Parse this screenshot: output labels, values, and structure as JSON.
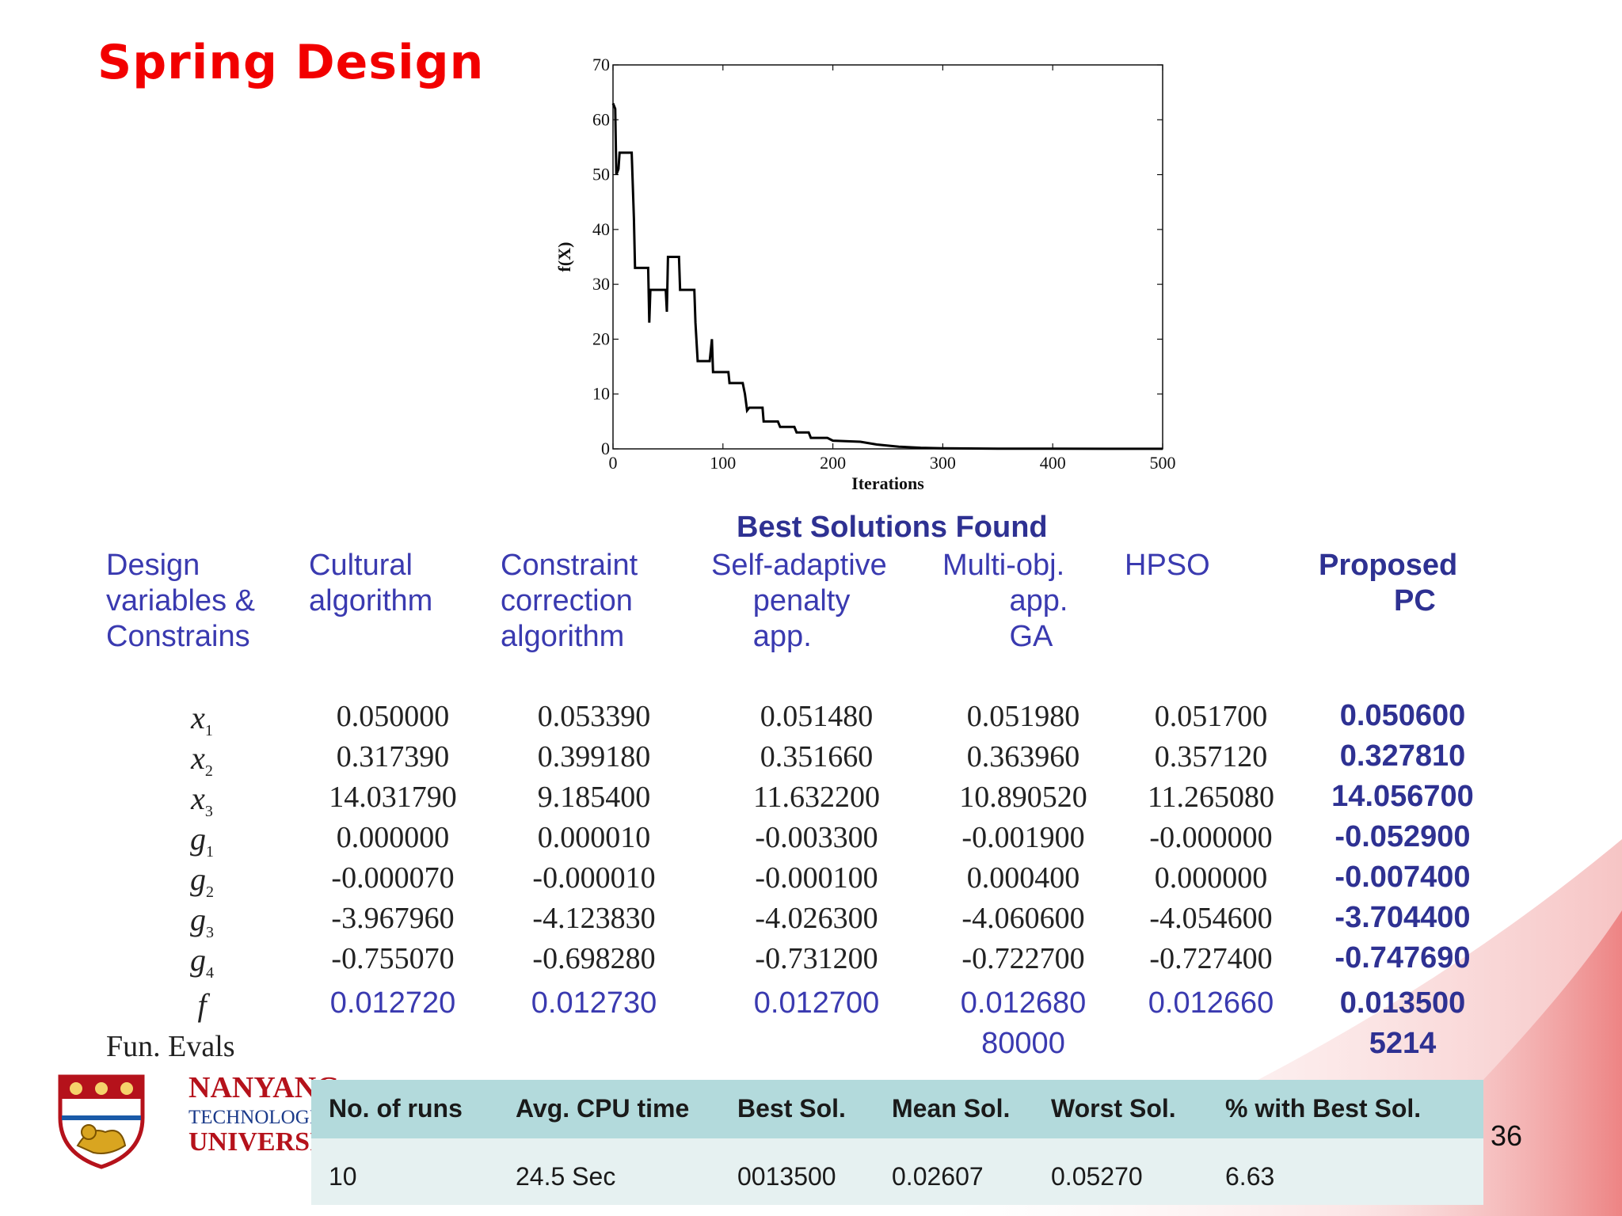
{
  "slide": {
    "title": "Spring Design",
    "page_number": "36"
  },
  "chart_data": {
    "type": "line",
    "xlabel": "Iterations",
    "ylabel": "f(X)",
    "xlim": [
      0,
      500
    ],
    "ylim": [
      0,
      70
    ],
    "xticks": [
      0,
      100,
      200,
      300,
      400,
      500
    ],
    "yticks": [
      0,
      10,
      20,
      30,
      40,
      50,
      60,
      70
    ],
    "grid": false,
    "series": [
      {
        "points": [
          [
            0,
            63
          ],
          [
            2,
            62
          ],
          [
            3,
            50
          ],
          [
            5,
            51
          ],
          [
            6,
            54
          ],
          [
            17,
            54
          ],
          [
            19,
            42
          ],
          [
            20,
            33
          ],
          [
            32,
            33
          ],
          [
            33,
            23
          ],
          [
            34,
            29
          ],
          [
            48,
            29
          ],
          [
            49,
            25
          ],
          [
            50,
            35
          ],
          [
            60,
            35
          ],
          [
            61,
            29
          ],
          [
            74,
            29
          ],
          [
            75,
            23
          ],
          [
            77,
            16
          ],
          [
            88,
            16
          ],
          [
            90,
            20
          ],
          [
            91,
            14
          ],
          [
            105,
            14
          ],
          [
            106,
            12
          ],
          [
            118,
            12
          ],
          [
            120,
            10
          ],
          [
            122,
            7
          ],
          [
            124,
            7.5
          ],
          [
            136,
            7.5
          ],
          [
            137,
            5
          ],
          [
            150,
            5
          ],
          [
            152,
            4
          ],
          [
            165,
            4
          ],
          [
            167,
            3
          ],
          [
            178,
            3
          ],
          [
            180,
            2
          ],
          [
            195,
            2
          ],
          [
            200,
            1.5
          ],
          [
            225,
            1.3
          ],
          [
            240,
            0.8
          ],
          [
            260,
            0.4
          ],
          [
            280,
            0.2
          ],
          [
            300,
            0.1
          ],
          [
            350,
            0.05
          ],
          [
            400,
            0.03
          ],
          [
            500,
            0.02
          ]
        ]
      }
    ]
  },
  "table": {
    "section_title": "Best Solutions Found",
    "header_label": "Design\nvariables &\nConstrains",
    "columns": [
      "Cultural\nalgorithm",
      "Constraint\ncorrection\nalgorithm",
      "Self-adaptive\n     penalty\n     app.",
      "Multi-obj.\n        app.\n        GA",
      "HPSO",
      "Proposed\n         PC"
    ],
    "rows": [
      {
        "var": "x",
        "sub": "1",
        "values": [
          "0.050000",
          "0.053390",
          "0.051480",
          "0.051980",
          "0.051700",
          "0.050600"
        ]
      },
      {
        "var": "x",
        "sub": "2",
        "values": [
          "0.317390",
          "0.399180",
          "0.351660",
          "0.363960",
          "0.357120",
          "0.327810"
        ]
      },
      {
        "var": "x",
        "sub": "3",
        "values": [
          "14.031790",
          "9.185400",
          "11.632200",
          "10.890520",
          "11.265080",
          "14.056700"
        ]
      },
      {
        "var": "g",
        "sub": "1",
        "values": [
          "0.000000",
          "0.000010",
          "-0.003300",
          "-0.001900",
          "-0.000000",
          "-0.052900"
        ]
      },
      {
        "var": "g",
        "sub": "2",
        "values": [
          "-0.000070",
          "-0.000010",
          "-0.000100",
          "0.000400",
          "0.000000",
          "-0.007400"
        ]
      },
      {
        "var": "g",
        "sub": "3",
        "values": [
          "-3.967960",
          "-4.123830",
          "-4.026300",
          "-4.060600",
          "-4.054600",
          "-3.704400"
        ]
      },
      {
        "var": "g",
        "sub": "4",
        "values": [
          "-0.755070",
          "-0.698280",
          "-0.731200",
          "-0.722700",
          "-0.727400",
          "-0.747690"
        ]
      },
      {
        "var": "f",
        "sub": "",
        "values": [
          "0.012720",
          "0.012730",
          "0.012700",
          "0.012680",
          "0.012660",
          "0.013500"
        ]
      }
    ],
    "fun_evals_label": "Fun. Evals",
    "fun_evals": [
      "",
      "",
      "",
      "80000",
      "",
      "5214"
    ]
  },
  "stats": {
    "headers": [
      "No. of runs",
      "Avg. CPU time",
      "Best Sol.",
      "Mean Sol.",
      "Worst Sol.",
      "% with Best Sol."
    ],
    "values": [
      "10",
      "24.5 Sec",
      "0013500",
      "0.02607",
      "0.05270",
      "6.63"
    ]
  },
  "logo": {
    "line1": "NANYANG",
    "line2": "TECHNOLOGICAL",
    "line3": "UNIVERSITY"
  }
}
